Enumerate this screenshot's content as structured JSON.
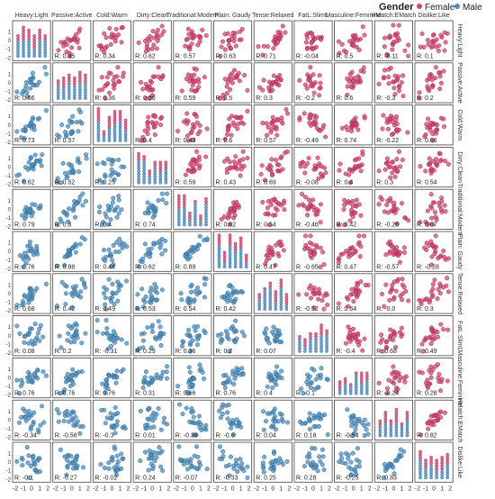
{
  "chart_data": {
    "type": "scatter",
    "legend": {
      "title": "Gender",
      "placement": "top-right",
      "entries": [
        {
          "name": "Female",
          "color": "#d6436f"
        },
        {
          "name": "Male",
          "color": "#4a8fc0"
        }
      ]
    },
    "variables": [
      "Heavy:Light",
      "Passive:Active",
      "Cold:Warm",
      "Dirty:Clean",
      "Traditional:Modern",
      "Plain: Gaudy",
      "Tense:Relaxed",
      "FatL:SlimL",
      "Masculine:Feminine",
      "HMatch:EMatch",
      "Dislike:Like"
    ],
    "axis_range": [
      -2,
      2
    ],
    "tick_labels": [
      "-2",
      "-1",
      "0",
      "1",
      "2"
    ],
    "grid": false,
    "upper_panels_show_correlation": "Female",
    "lower_panels_show_correlation": "Male",
    "correlations": [
      {
        "row": 0,
        "col": 1,
        "label": "R: 0.45"
      },
      {
        "row": 0,
        "col": 2,
        "label": "R: 0.34"
      },
      {
        "row": 0,
        "col": 3,
        "label": "R: 0.62"
      },
      {
        "row": 0,
        "col": 4,
        "label": "R: 0.57"
      },
      {
        "row": 0,
        "col": 5,
        "label": "R: 0.63"
      },
      {
        "row": 0,
        "col": 6,
        "label": "R: 0.71"
      },
      {
        "row": 0,
        "col": 7,
        "label": "R: -0.04"
      },
      {
        "row": 0,
        "col": 8,
        "label": "R: 0.5"
      },
      {
        "row": 0,
        "col": 9,
        "label": "R: -0.11"
      },
      {
        "row": 0,
        "col": 10,
        "label": "R: 0.1"
      },
      {
        "row": 1,
        "col": 2,
        "label": "R: 0.36"
      },
      {
        "row": 1,
        "col": 3,
        "label": "R: 0.56"
      },
      {
        "row": 1,
        "col": 4,
        "label": "R: 0.59"
      },
      {
        "row": 1,
        "col": 5,
        "label": "R: 0.5"
      },
      {
        "row": 1,
        "col": 6,
        "label": "R: 0.3"
      },
      {
        "row": 1,
        "col": 7,
        "label": "R: -0.2"
      },
      {
        "row": 1,
        "col": 8,
        "label": "R: 0.6"
      },
      {
        "row": 1,
        "col": 9,
        "label": "R: -0.3"
      },
      {
        "row": 1,
        "col": 10,
        "label": "R: 0.2"
      },
      {
        "row": 2,
        "col": 3,
        "label": "R: 0.4"
      },
      {
        "row": 2,
        "col": 4,
        "label": "R: 0.43"
      },
      {
        "row": 2,
        "col": 5,
        "label": "R: 0.6"
      },
      {
        "row": 2,
        "col": 6,
        "label": "R: 0.57"
      },
      {
        "row": 2,
        "col": 7,
        "label": "R: -0.49"
      },
      {
        "row": 2,
        "col": 8,
        "label": "R: 0.74"
      },
      {
        "row": 2,
        "col": 9,
        "label": "R: -0.22"
      },
      {
        "row": 2,
        "col": 10,
        "label": "R: 0.06"
      },
      {
        "row": 3,
        "col": 4,
        "label": "R: 0.59"
      },
      {
        "row": 3,
        "col": 5,
        "label": "R: 0.43"
      },
      {
        "row": 3,
        "col": 6,
        "label": "R: 0.69"
      },
      {
        "row": 3,
        "col": 7,
        "label": "R: -0.08"
      },
      {
        "row": 3,
        "col": 8,
        "label": "R: 0.4"
      },
      {
        "row": 3,
        "col": 9,
        "label": "R: 0.3"
      },
      {
        "row": 3,
        "col": 10,
        "label": "R: 0.54"
      },
      {
        "row": 4,
        "col": 5,
        "label": "R: 0.82"
      },
      {
        "row": 4,
        "col": 6,
        "label": "R: 0.54"
      },
      {
        "row": 4,
        "col": 7,
        "label": "R: -0.46"
      },
      {
        "row": 4,
        "col": 8,
        "label": "R: 0.42"
      },
      {
        "row": 4,
        "col": 9,
        "label": "R: -0.26"
      },
      {
        "row": 4,
        "col": 10,
        "label": "R: 0.07"
      },
      {
        "row": 5,
        "col": 6,
        "label": "R: 0.47"
      },
      {
        "row": 5,
        "col": 7,
        "label": "R: -0.65"
      },
      {
        "row": 5,
        "col": 8,
        "label": "R: 0.47"
      },
      {
        "row": 5,
        "col": 9,
        "label": "R: -0.57"
      },
      {
        "row": 5,
        "col": 10,
        "label": "R: -0.28"
      },
      {
        "row": 6,
        "col": 7,
        "label": "R: -0.52"
      },
      {
        "row": 6,
        "col": 8,
        "label": "R: 0.64"
      },
      {
        "row": 6,
        "col": 9,
        "label": "R: -0.0"
      },
      {
        "row": 6,
        "col": 10,
        "label": "R: 0.3"
      },
      {
        "row": 7,
        "col": 8,
        "label": "R: -0.4"
      },
      {
        "row": 7,
        "col": 9,
        "label": "R: 0.68"
      },
      {
        "row": 7,
        "col": 10,
        "label": "R: 0.49"
      },
      {
        "row": 8,
        "col": 9,
        "label": "R: -0.24"
      },
      {
        "row": 8,
        "col": 10,
        "label": "R: 0.28"
      },
      {
        "row": 9,
        "col": 10,
        "label": "R: 0.82"
      },
      {
        "row": 1,
        "col": 0,
        "label": "R: 0.66"
      },
      {
        "row": 2,
        "col": 0,
        "label": "R: 0.73"
      },
      {
        "row": 2,
        "col": 1,
        "label": "R: 0.57"
      },
      {
        "row": 3,
        "col": 0,
        "label": "R: 0.62"
      },
      {
        "row": 3,
        "col": 1,
        "label": "R: 0.52"
      },
      {
        "row": 3,
        "col": 2,
        "label": "R: 0.25"
      },
      {
        "row": 4,
        "col": 0,
        "label": "R: 0.79"
      },
      {
        "row": 4,
        "col": 1,
        "label": "R: 0.8"
      },
      {
        "row": 4,
        "col": 2,
        "label": "R: 0.4"
      },
      {
        "row": 4,
        "col": 3,
        "label": "R: 0.74"
      },
      {
        "row": 5,
        "col": 0,
        "label": "R: 0.76"
      },
      {
        "row": 5,
        "col": 1,
        "label": "R: 0.88"
      },
      {
        "row": 5,
        "col": 2,
        "label": "R: 0.44"
      },
      {
        "row": 5,
        "col": 3,
        "label": "R: 0.62"
      },
      {
        "row": 5,
        "col": 4,
        "label": "R: 0.89"
      },
      {
        "row": 6,
        "col": 0,
        "label": "R: 0.68"
      },
      {
        "row": 6,
        "col": 1,
        "label": "R: 0.42"
      },
      {
        "row": 6,
        "col": 2,
        "label": "R: 0.49"
      },
      {
        "row": 6,
        "col": 3,
        "label": "R: 0.53"
      },
      {
        "row": 6,
        "col": 4,
        "label": "R: 0.54"
      },
      {
        "row": 6,
        "col": 5,
        "label": "R: 0.42"
      },
      {
        "row": 7,
        "col": 0,
        "label": "R: 0.08"
      },
      {
        "row": 7,
        "col": 1,
        "label": "R: 0.2"
      },
      {
        "row": 7,
        "col": 2,
        "label": "R: -0.31"
      },
      {
        "row": 7,
        "col": 3,
        "label": "R: 0.29"
      },
      {
        "row": 7,
        "col": 4,
        "label": "R: 0.36"
      },
      {
        "row": 7,
        "col": 5,
        "label": "R: 0.2"
      },
      {
        "row": 7,
        "col": 6,
        "label": "R: 0.07"
      },
      {
        "row": 8,
        "col": 0,
        "label": "R: 0.76"
      },
      {
        "row": 8,
        "col": 1,
        "label": "R: 0.76"
      },
      {
        "row": 8,
        "col": 2,
        "label": "R: 0.76"
      },
      {
        "row": 8,
        "col": 3,
        "label": "R: 0.31"
      },
      {
        "row": 8,
        "col": 4,
        "label": "R: 0.66"
      },
      {
        "row": 8,
        "col": 5,
        "label": "R: 0.76"
      },
      {
        "row": 8,
        "col": 6,
        "label": "R: 0.4"
      },
      {
        "row": 8,
        "col": 7,
        "label": "R: -0.1"
      },
      {
        "row": 9,
        "col": 0,
        "label": "R: -0.34"
      },
      {
        "row": 9,
        "col": 1,
        "label": "R: -0.56"
      },
      {
        "row": 9,
        "col": 2,
        "label": "R: -0.3"
      },
      {
        "row": 9,
        "col": 3,
        "label": "R: 0.01"
      },
      {
        "row": 9,
        "col": 4,
        "label": "R: -0.39"
      },
      {
        "row": 9,
        "col": 5,
        "label": "R: -0.6"
      },
      {
        "row": 9,
        "col": 6,
        "label": "R: 0.04"
      },
      {
        "row": 9,
        "col": 7,
        "label": "R: 0.18"
      },
      {
        "row": 9,
        "col": 8,
        "label": "R: -0.54"
      },
      {
        "row": 10,
        "col": 0,
        "label": "R: -0.1"
      },
      {
        "row": 10,
        "col": 1,
        "label": "R: -0.27"
      },
      {
        "row": 10,
        "col": 2,
        "label": "R: -0.02"
      },
      {
        "row": 10,
        "col": 3,
        "label": "R: 0.24"
      },
      {
        "row": 10,
        "col": 4,
        "label": "R: -0.07"
      },
      {
        "row": 10,
        "col": 5,
        "label": "R: -0.33"
      },
      {
        "row": 10,
        "col": 6,
        "label": "R: 0.25"
      },
      {
        "row": 10,
        "col": 7,
        "label": "R: 0.28"
      },
      {
        "row": 10,
        "col": 8,
        "label": "R: -0.25"
      },
      {
        "row": 10,
        "col": 9,
        "label": "R: 0.83"
      }
    ]
  }
}
